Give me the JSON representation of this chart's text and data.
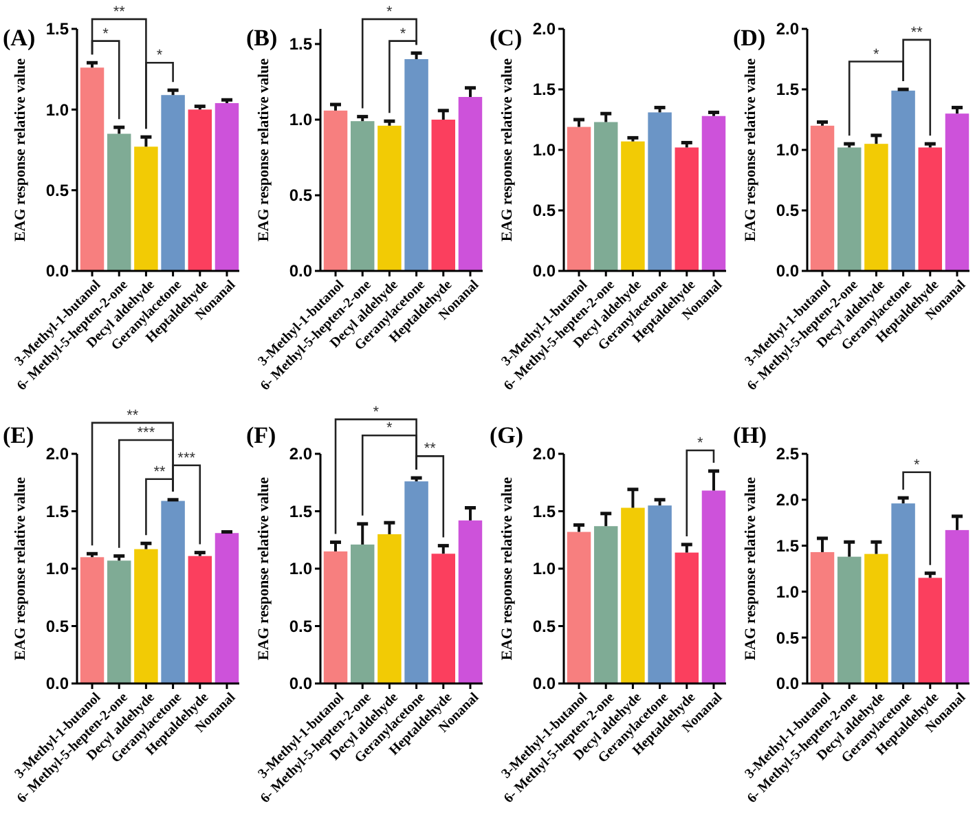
{
  "chart_data": [
    {
      "type": "bar",
      "title": "(A)",
      "ylabel": "EAG response relative value",
      "categories": [
        "3-Methyl-1-butanol",
        "6- Methyl-5-hepten-2-one",
        "Decyl aldehyde",
        "Geranylacetone",
        "Heptaldehyde",
        "Nonanal"
      ],
      "values": [
        1.26,
        0.85,
        0.77,
        1.09,
        1.0,
        1.04
      ],
      "errors": [
        0.03,
        0.04,
        0.06,
        0.03,
        0.02,
        0.02
      ],
      "colors": [
        "#f77f7f",
        "#7fab95",
        "#f2cb05",
        "#6b95c6",
        "#fb3f5e",
        "#cd52da"
      ],
      "ylim": [
        0,
        1.5
      ],
      "yticks": [
        {
          "value": 0,
          "label": "0.0"
        },
        0.5,
        {
          "value": 1,
          "label": "1.0"
        },
        1.5
      ],
      "annotations": [
        "**",
        "*",
        "*"
      ]
    },
    {
      "type": "bar",
      "title": "(B)",
      "ylabel": "EAG response relative value",
      "categories": [
        "3-Methyl-1-butanol",
        "6- Methyl-5-hepten-2-one",
        "Decyl aldehyde",
        "Geranylacetone",
        "Heptaldehyde",
        "Nonanal"
      ],
      "values": [
        1.06,
        0.99,
        0.96,
        1.4,
        1.0,
        1.15
      ],
      "errors": [
        0.04,
        0.03,
        0.03,
        0.04,
        0.06,
        0.06
      ],
      "colors": [
        "#f77f7f",
        "#7fab95",
        "#f2cb05",
        "#6b95c6",
        "#fb3f5e",
        "#cd52da"
      ],
      "ylim": [
        0,
        1.6
      ],
      "yticks": [
        {
          "value": 0,
          "label": "0.0"
        },
        0.5,
        {
          "value": 1,
          "label": "1.0"
        },
        1.5
      ],
      "annotations": [
        "*",
        "*"
      ]
    },
    {
      "type": "bar",
      "title": "(C)",
      "ylabel": "EAG response relative value",
      "categories": [
        "3-Methyl-1-butanol",
        "6- Methyl-5-hepten-2-one",
        "Decyl aldehyde",
        "Geranylacetone",
        "Heptaldehyde",
        "Nonanal"
      ],
      "values": [
        1.19,
        1.23,
        1.07,
        1.31,
        1.02,
        1.28
      ],
      "errors": [
        0.06,
        0.07,
        0.03,
        0.04,
        0.04,
        0.03
      ],
      "colors": [
        "#f77f7f",
        "#7fab95",
        "#f2cb05",
        "#6b95c6",
        "#fb3f5e",
        "#cd52da"
      ],
      "ylim": [
        0,
        2
      ],
      "yticks": [
        {
          "value": 0,
          "label": "0.0"
        },
        0.5,
        {
          "value": 1,
          "label": "1.0"
        },
        1.5,
        {
          "value": 2,
          "label": "2.0"
        }
      ]
    },
    {
      "type": "bar",
      "title": "(D)",
      "ylabel": "EAG response relative value",
      "categories": [
        "3-Methyl-1-butanol",
        "6- Methyl-5-hepten-2-one",
        "Decyl aldehyde",
        "Geranylacetone",
        "Heptaldehyde",
        "Nonanal"
      ],
      "values": [
        1.2,
        1.02,
        1.05,
        1.49,
        1.02,
        1.3
      ],
      "errors": [
        0.03,
        0.03,
        0.07,
        0.01,
        0.03,
        0.05
      ],
      "colors": [
        "#f77f7f",
        "#7fab95",
        "#f2cb05",
        "#6b95c6",
        "#fb3f5e",
        "#cd52da"
      ],
      "ylim": [
        0,
        2
      ],
      "yticks": [
        {
          "value": 0,
          "label": "0.0"
        },
        0.5,
        {
          "value": 1,
          "label": "1.0"
        },
        1.5,
        {
          "value": 2,
          "label": "2.0"
        }
      ],
      "annotations": [
        "*",
        "**"
      ]
    },
    {
      "type": "bar",
      "title": "(E)",
      "ylabel": "EAG response relative value",
      "categories": [
        "3-Methyl-1-butanol",
        "6- Methyl-5-hepten-2-one",
        "Decyl aldehyde",
        "Geranylacetone",
        "Heptaldehyde",
        "Nonanal"
      ],
      "values": [
        1.1,
        1.07,
        1.17,
        1.59,
        1.11,
        1.31
      ],
      "errors": [
        0.03,
        0.04,
        0.05,
        0.01,
        0.03,
        0.01
      ],
      "colors": [
        "#f77f7f",
        "#7fab95",
        "#f2cb05",
        "#6b95c6",
        "#fb3f5e",
        "#cd52da"
      ],
      "ylim": [
        0,
        2
      ],
      "yticks": [
        {
          "value": 0,
          "label": "0.0"
        },
        0.5,
        {
          "value": 1,
          "label": "1.0"
        },
        1.5,
        {
          "value": 2,
          "label": "2.0"
        }
      ],
      "annotations": [
        "**",
        "***",
        "**",
        "***"
      ]
    },
    {
      "type": "bar",
      "title": "(F)",
      "ylabel": "EAG response relative value",
      "categories": [
        "3-Methyl-1-butanol",
        "6- Methyl-5-hepten-2-one",
        "Decyl aldehyde",
        "Geranylacetone",
        "Heptaldehyde",
        "Nonanal"
      ],
      "values": [
        1.15,
        1.21,
        1.3,
        1.76,
        1.13,
        1.42
      ],
      "errors": [
        0.08,
        0.18,
        0.1,
        0.03,
        0.07,
        0.11
      ],
      "colors": [
        "#f77f7f",
        "#7fab95",
        "#f2cb05",
        "#6b95c6",
        "#fb3f5e",
        "#cd52da"
      ],
      "ylim": [
        0,
        2
      ],
      "yticks": [
        {
          "value": 0,
          "label": "0.0"
        },
        0.5,
        {
          "value": 1,
          "label": "1.0"
        },
        1.5,
        {
          "value": 2,
          "label": "2.0"
        }
      ],
      "annotations": [
        "*",
        "*",
        "**"
      ]
    },
    {
      "type": "bar",
      "title": "(G)",
      "ylabel": "EAG response relative value",
      "categories": [
        "3-Methyl-1-butanol",
        "6- Methyl-5-hepten-2-one",
        "Decyl aldehyde",
        "Geranylacetone",
        "Heptaldehyde",
        "Nonanal"
      ],
      "values": [
        1.32,
        1.37,
        1.53,
        1.55,
        1.14,
        1.68
      ],
      "errors": [
        0.06,
        0.11,
        0.16,
        0.05,
        0.07,
        0.17
      ],
      "colors": [
        "#f77f7f",
        "#7fab95",
        "#f2cb05",
        "#6b95c6",
        "#fb3f5e",
        "#cd52da"
      ],
      "ylim": [
        0,
        2
      ],
      "yticks": [
        {
          "value": 0,
          "label": "0.0"
        },
        0.5,
        {
          "value": 1,
          "label": "1.0"
        },
        1.5,
        {
          "value": 2,
          "label": "2.0"
        }
      ],
      "annotations": [
        "*"
      ]
    },
    {
      "type": "bar",
      "title": "(H)",
      "ylabel": "EAG response relative value",
      "categories": [
        "3-Methyl-1-butanol",
        "6- Methyl-5-hepten-2-one",
        "Decyl aldehyde",
        "Geranylacetone",
        "Heptaldehyde",
        "Nonanal"
      ],
      "values": [
        1.43,
        1.38,
        1.41,
        1.96,
        1.15,
        1.67
      ],
      "errors": [
        0.15,
        0.16,
        0.13,
        0.06,
        0.05,
        0.15
      ],
      "colors": [
        "#f77f7f",
        "#7fab95",
        "#f2cb05",
        "#6b95c6",
        "#fb3f5e",
        "#cd52da"
      ],
      "ylim": [
        0,
        2.5
      ],
      "yticks": [
        {
          "value": 0,
          "label": "0.0"
        },
        0.5,
        {
          "value": 1,
          "label": "1.0"
        },
        1.5,
        {
          "value": 2,
          "label": "2.0"
        },
        2.5
      ],
      "annotations": [
        "*"
      ]
    }
  ]
}
